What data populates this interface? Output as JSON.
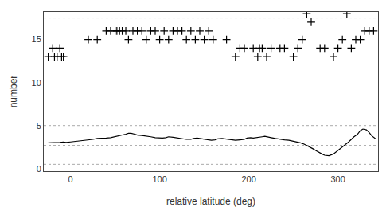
{
  "chart_data": {
    "type": "line",
    "x_label": "relative latitude (deg)",
    "y_label": "number",
    "xlim": [
      -30,
      345
    ],
    "ylim": [
      -0.3,
      18.2
    ],
    "xticks": [
      0,
      100,
      200,
      300
    ],
    "yticks": [
      0,
      5,
      10,
      15
    ],
    "grid": false,
    "hlines": {
      "values": [
        0.5,
        2.7,
        5.0,
        17.5
      ],
      "color": "#aaaaaa",
      "line_style": "dotted"
    },
    "series": [
      {
        "type": "line",
        "color": "#000000",
        "line_style": "solid",
        "x": [
          -25,
          -20,
          -15,
          -12,
          -8,
          -5,
          0,
          5,
          10,
          15,
          20,
          25,
          30,
          35,
          40,
          45,
          50,
          55,
          58,
          62,
          65,
          68,
          72,
          75,
          80,
          85,
          90,
          95,
          100,
          103,
          107,
          110,
          115,
          118,
          122,
          125,
          130,
          135,
          138,
          142,
          145,
          150,
          153,
          158,
          162,
          165,
          170,
          173,
          177,
          180,
          185,
          190,
          195,
          198,
          202,
          205,
          210,
          215,
          218,
          222,
          225,
          230,
          235,
          240,
          245,
          250,
          255,
          258,
          262,
          265,
          268,
          272,
          275,
          278,
          282,
          285,
          290,
          295,
          300,
          305,
          308,
          312,
          315,
          318,
          322,
          325,
          328,
          332,
          335,
          338,
          342
        ],
        "values": [
          3.0,
          3.0,
          3.0,
          3.05,
          3.1,
          3.05,
          3.1,
          3.15,
          3.2,
          3.25,
          3.3,
          3.4,
          3.5,
          3.5,
          3.55,
          3.6,
          3.7,
          3.8,
          3.9,
          4.0,
          4.1,
          4.1,
          4.0,
          3.9,
          3.85,
          3.8,
          3.7,
          3.6,
          3.55,
          3.55,
          3.6,
          3.7,
          3.65,
          3.6,
          3.55,
          3.5,
          3.4,
          3.4,
          3.5,
          3.55,
          3.5,
          3.4,
          3.35,
          3.3,
          3.35,
          3.45,
          3.5,
          3.45,
          3.4,
          3.35,
          3.3,
          3.35,
          3.4,
          3.55,
          3.6,
          3.55,
          3.6,
          3.7,
          3.75,
          3.7,
          3.6,
          3.5,
          3.4,
          3.35,
          3.3,
          3.2,
          3.1,
          3.0,
          2.85,
          2.7,
          2.5,
          2.3,
          2.1,
          1.9,
          1.7,
          1.55,
          1.5,
          1.7,
          2.1,
          2.5,
          2.8,
          3.1,
          3.4,
          3.7,
          4.0,
          4.4,
          4.6,
          4.5,
          4.2,
          3.8,
          3.5
        ]
      },
      {
        "type": "scatter",
        "color": "#000000",
        "marker": "cross",
        "x": [
          -25,
          -20,
          -18,
          -15,
          -12,
          -10,
          -8,
          20,
          30,
          40,
          45,
          50,
          52,
          55,
          58,
          62,
          65,
          70,
          75,
          80,
          85,
          90,
          95,
          100,
          105,
          110,
          115,
          120,
          125,
          130,
          135,
          140,
          145,
          150,
          155,
          160,
          175,
          185,
          190,
          195,
          205,
          210,
          212,
          215,
          220,
          225,
          235,
          240,
          250,
          255,
          260,
          265,
          270,
          280,
          285,
          295,
          300,
          305,
          310,
          315,
          320,
          325,
          330,
          335,
          340
        ],
        "values": [
          13,
          14,
          13,
          13,
          14,
          13,
          13,
          15,
          15,
          16,
          16,
          16,
          16,
          16,
          16,
          16,
          15,
          16,
          16,
          16,
          15,
          16,
          16,
          15,
          16,
          15,
          16,
          16,
          16,
          15,
          16,
          15,
          16,
          15,
          16,
          15,
          15,
          13,
          14,
          14,
          14,
          13,
          14,
          14,
          13,
          14,
          14,
          14,
          13,
          14,
          15,
          18,
          17,
          14,
          14,
          13,
          14,
          15,
          18,
          14,
          15,
          15,
          16,
          16,
          16
        ]
      }
    ]
  }
}
